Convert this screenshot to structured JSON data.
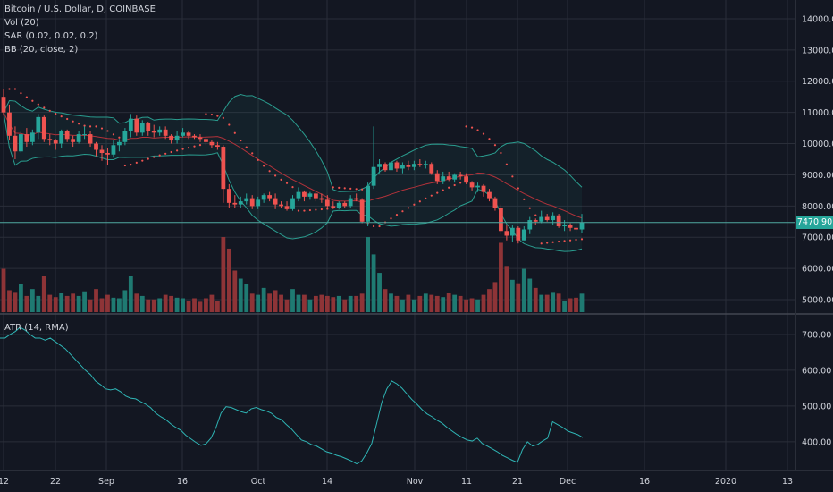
{
  "legend": {
    "title": "Bitcoin / U.S. Dollar, D, COINBASE",
    "vol": "Vol (20)",
    "sar": "SAR (0.02, 0.02, 0.2)",
    "bb": "BB (20, close, 2)",
    "atr": "ATR (14, RMA)"
  },
  "last_price_label": "7470.90",
  "colors": {
    "background": "#131722",
    "grid": "#2a2e39",
    "text": "#d1d4dc",
    "up": "#26a69a",
    "down": "#ef5350",
    "up_volume": "#1f7a72",
    "down_volume": "#8e3437",
    "bb_band": "#2a9d8f",
    "bb_basis": "#b2323a",
    "sar": "#ef5350",
    "atr": "#2fb5b5",
    "price_line": "#4fa8a0",
    "price_tag": "#26a69a"
  },
  "chart_data": [
    {
      "type": "candlestick",
      "title": "Bitcoin / U.S. Dollar, D, COINBASE",
      "x_tick_labels": [
        "12",
        "22",
        "Sep",
        "16",
        "Oct",
        "14",
        "Nov",
        "11",
        "21",
        "Dec",
        "16",
        "2020",
        "13"
      ],
      "y_tick_labels": [
        "14000.00",
        "13000.00",
        "12000.00",
        "11000.00",
        "10000.00",
        "9000.00",
        "8000.00",
        "7000.00",
        "6000.00",
        "5000.00"
      ],
      "ylim": [
        4600,
        14600
      ],
      "last_price": 7470.9,
      "grid": true,
      "ohlc": [
        [
          11500,
          11750,
          10900,
          11000
        ],
        [
          11000,
          11250,
          10100,
          10250
        ],
        [
          10250,
          10550,
          9500,
          9750
        ],
        [
          9750,
          10400,
          9700,
          10300
        ],
        [
          10300,
          10500,
          9900,
          10050
        ],
        [
          10050,
          10450,
          9950,
          10350
        ],
        [
          10350,
          10950,
          10150,
          10850
        ],
        [
          10850,
          10900,
          10050,
          10150
        ],
        [
          10150,
          10300,
          9950,
          10100
        ],
        [
          10100,
          10150,
          9800,
          10000
        ],
        [
          10000,
          10450,
          9850,
          10400
        ],
        [
          10400,
          10450,
          10050,
          10150
        ],
        [
          10150,
          10250,
          9900,
          10050
        ],
        [
          10050,
          10400,
          10000,
          10300
        ],
        [
          10300,
          10550,
          10150,
          10300
        ],
        [
          10300,
          10400,
          9900,
          10000
        ],
        [
          10000,
          10050,
          9600,
          9800
        ],
        [
          9800,
          9950,
          9450,
          9700
        ],
        [
          9700,
          9850,
          9300,
          9650
        ],
        [
          9650,
          10100,
          9550,
          9950
        ],
        [
          9950,
          10150,
          9750,
          10050
        ],
        [
          10050,
          10500,
          9950,
          10400
        ],
        [
          10400,
          10950,
          10200,
          10800
        ],
        [
          10800,
          10900,
          10250,
          10350
        ],
        [
          10350,
          10750,
          10250,
          10650
        ],
        [
          10650,
          10700,
          10250,
          10400
        ],
        [
          10400,
          10600,
          10200,
          10350
        ],
        [
          10350,
          10550,
          10250,
          10450
        ],
        [
          10450,
          10550,
          10150,
          10250
        ],
        [
          10250,
          10300,
          10000,
          10100
        ],
        [
          10100,
          10400,
          10000,
          10250
        ],
        [
          10250,
          10500,
          10200,
          10350
        ],
        [
          10350,
          10400,
          10150,
          10250
        ],
        [
          10250,
          10300,
          10150,
          10200
        ],
        [
          10200,
          10300,
          10050,
          10150
        ],
        [
          10150,
          10250,
          9950,
          10050
        ],
        [
          10050,
          10100,
          9850,
          9950
        ],
        [
          9950,
          10050,
          9800,
          9900
        ],
        [
          9900,
          9950,
          8100,
          8550
        ],
        [
          8550,
          8700,
          7950,
          8100
        ],
        [
          8100,
          8350,
          7950,
          8050
        ],
        [
          8050,
          8300,
          7950,
          8150
        ],
        [
          8150,
          8400,
          8050,
          8250
        ],
        [
          8250,
          8350,
          7900,
          8000
        ],
        [
          8000,
          8300,
          7900,
          8200
        ],
        [
          8200,
          8400,
          8100,
          8350
        ],
        [
          8350,
          8450,
          8150,
          8250
        ],
        [
          8250,
          8400,
          7900,
          8050
        ],
        [
          8050,
          8150,
          7950,
          8000
        ],
        [
          8000,
          8150,
          7850,
          7900
        ],
        [
          7900,
          8350,
          7850,
          8250
        ],
        [
          8250,
          8600,
          8150,
          8450
        ],
        [
          8450,
          8500,
          8150,
          8300
        ],
        [
          8300,
          8450,
          8200,
          8400
        ],
        [
          8400,
          8500,
          8150,
          8250
        ],
        [
          8250,
          8400,
          8100,
          8200
        ],
        [
          8200,
          8350,
          7950,
          8000
        ],
        [
          8000,
          8150,
          7900,
          7950
        ],
        [
          7950,
          8150,
          7900,
          8100
        ],
        [
          8100,
          8150,
          7950,
          8000
        ],
        [
          8000,
          8350,
          7950,
          8250
        ],
        [
          8250,
          8400,
          8150,
          8200
        ],
        [
          8200,
          8250,
          7450,
          7500
        ],
        [
          7500,
          8750,
          7350,
          8650
        ],
        [
          8650,
          10550,
          8550,
          9250
        ],
        [
          9250,
          9500,
          9050,
          9350
        ],
        [
          9350,
          9400,
          9100,
          9150
        ],
        [
          9150,
          9500,
          9050,
          9400
        ],
        [
          9400,
          9450,
          9100,
          9200
        ],
        [
          9200,
          9400,
          9050,
          9300
        ],
        [
          9300,
          9450,
          9150,
          9250
        ],
        [
          9250,
          9450,
          9150,
          9350
        ],
        [
          9350,
          9500,
          9250,
          9300
        ],
        [
          9300,
          9450,
          9200,
          9350
        ],
        [
          9350,
          9400,
          9000,
          9050
        ],
        [
          9050,
          9150,
          8700,
          8800
        ],
        [
          8800,
          9100,
          8700,
          8950
        ],
        [
          8950,
          9100,
          8800,
          8850
        ],
        [
          8850,
          9050,
          8750,
          9000
        ],
        [
          9000,
          9100,
          8850,
          8950
        ],
        [
          8950,
          9050,
          8700,
          8750
        ],
        [
          8750,
          8800,
          8500,
          8600
        ],
        [
          8600,
          8750,
          8450,
          8650
        ],
        [
          8650,
          8700,
          8300,
          8450
        ],
        [
          8450,
          8550,
          8150,
          8250
        ],
        [
          8250,
          8300,
          7850,
          7950
        ],
        [
          7950,
          8050,
          7100,
          7200
        ],
        [
          7200,
          7400,
          6900,
          7050
        ],
        [
          7050,
          7400,
          6850,
          7300
        ],
        [
          7300,
          7350,
          6800,
          6900
        ],
        [
          6900,
          7350,
          6900,
          7250
        ],
        [
          7250,
          7650,
          7100,
          7550
        ],
        [
          7550,
          7600,
          7400,
          7500
        ],
        [
          7500,
          7850,
          7450,
          7650
        ],
        [
          7650,
          7750,
          7500,
          7550
        ],
        [
          7550,
          7800,
          7400,
          7700
        ],
        [
          7700,
          7750,
          7300,
          7350
        ],
        [
          7350,
          7550,
          7200,
          7400
        ],
        [
          7400,
          7450,
          7200,
          7300
        ],
        [
          7300,
          7600,
          7150,
          7250
        ],
        [
          7250,
          7750,
          7150,
          7470.9
        ]
      ]
    },
    {
      "type": "bar",
      "title": "Vol (20)",
      "values": [
        75,
        38,
        35,
        48,
        28,
        40,
        28,
        62,
        30,
        26,
        34,
        28,
        32,
        28,
        36,
        22,
        40,
        24,
        30,
        25,
        24,
        38,
        62,
        32,
        28,
        22,
        22,
        24,
        30,
        28,
        25,
        24,
        20,
        24,
        18,
        24,
        30,
        20,
        130,
        110,
        72,
        58,
        48,
        32,
        30,
        42,
        32,
        38,
        30,
        22,
        40,
        30,
        30,
        22,
        28,
        30,
        28,
        26,
        28,
        22,
        28,
        28,
        32,
        130,
        100,
        68,
        40,
        32,
        28,
        22,
        30,
        22,
        28,
        32,
        30,
        28,
        26,
        34,
        30,
        28,
        22,
        24,
        22,
        30,
        40,
        52,
        120,
        80,
        56,
        50,
        75,
        58,
        42,
        30,
        30,
        35,
        32,
        20,
        24,
        25,
        32
      ]
    },
    {
      "type": "line",
      "title": "ATR (14, RMA)",
      "ylim": [
        322,
        755
      ],
      "y_tick_labels": [
        "700.00",
        "600.00",
        "500.00",
        "400.00"
      ],
      "values": [
        690,
        690,
        700,
        708,
        720,
        712,
        700,
        690,
        690,
        684,
        690,
        680,
        670,
        660,
        645,
        630,
        615,
        600,
        588,
        570,
        560,
        548,
        545,
        548,
        540,
        528,
        522,
        520,
        512,
        505,
        495,
        480,
        470,
        462,
        450,
        440,
        432,
        418,
        408,
        398,
        390,
        394,
        410,
        440,
        480,
        498,
        496,
        490,
        484,
        480,
        492,
        496,
        490,
        486,
        480,
        468,
        462,
        448,
        436,
        420,
        405,
        400,
        392,
        388,
        380,
        372,
        368,
        362,
        358,
        352,
        346,
        338,
        346,
        368,
        395,
        452,
        510,
        548,
        570,
        562,
        550,
        534,
        518,
        505,
        490,
        478,
        470,
        460,
        452,
        440,
        430,
        420,
        412,
        405,
        402,
        410,
        395,
        388,
        380,
        372,
        362,
        355,
        348,
        342,
        378,
        400,
        388,
        392,
        402,
        410,
        456,
        448,
        440,
        430,
        425,
        420,
        412
      ]
    }
  ]
}
